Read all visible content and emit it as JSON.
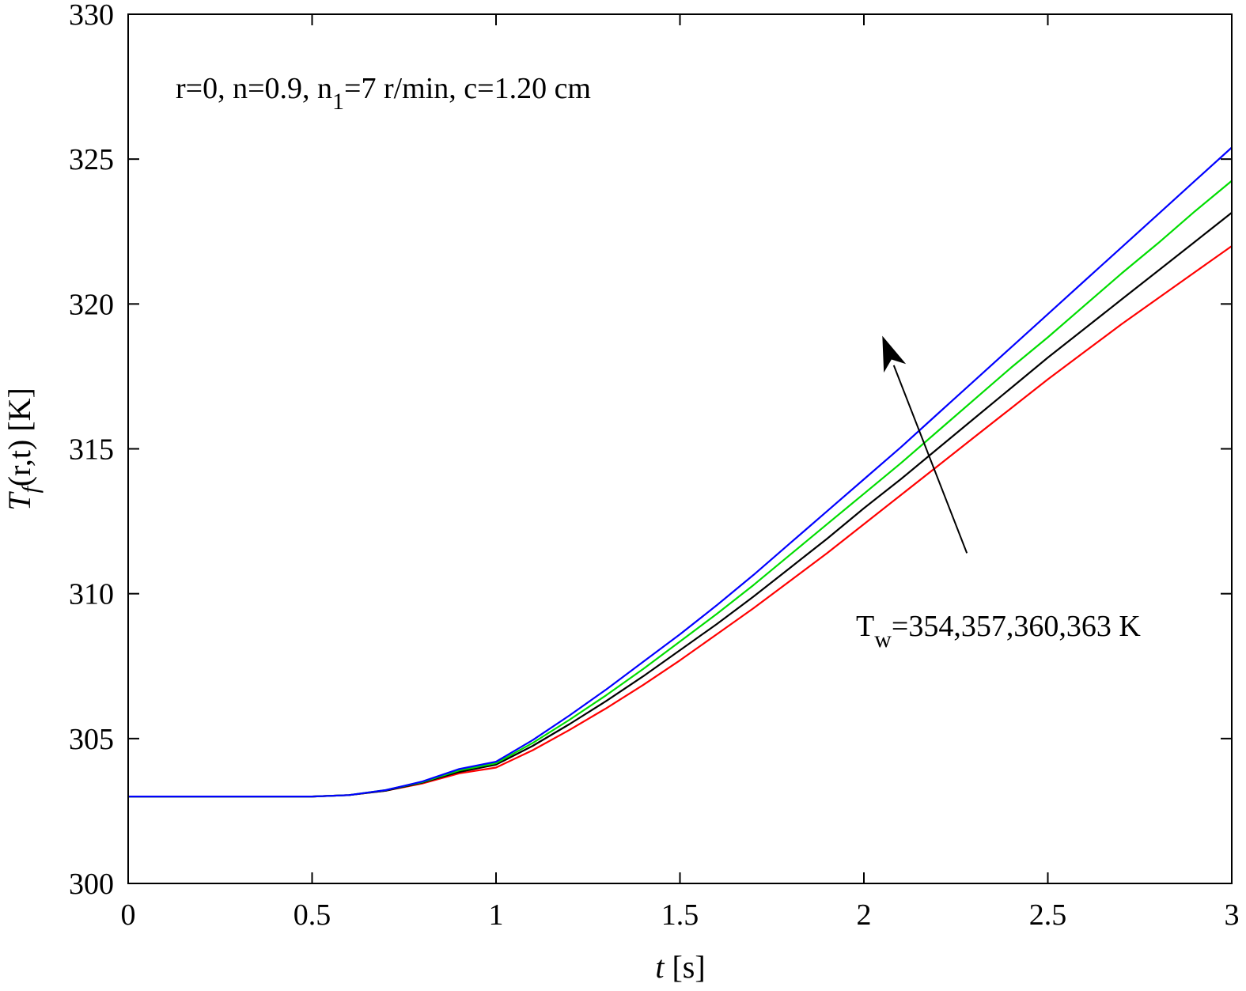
{
  "chart_data": {
    "type": "line",
    "xlabel": {
      "var": "t",
      "unit": "[s]"
    },
    "ylabel": {
      "var": "T",
      "sub": "f",
      "rest": "(r,t) [K]"
    },
    "xlim": [
      0,
      3
    ],
    "ylim": [
      300,
      330
    ],
    "xticks": [
      0,
      0.5,
      1,
      1.5,
      2,
      2.5,
      3
    ],
    "xtick_labels": [
      "0",
      "0.5",
      "1",
      "1.5",
      "2",
      "2.5",
      "3"
    ],
    "yticks": [
      300,
      305,
      310,
      315,
      320,
      325,
      330
    ],
    "ytick_labels": [
      "300",
      "305",
      "310",
      "315",
      "320",
      "325",
      "330"
    ],
    "grid": false,
    "annotations": {
      "params": {
        "part1": "r=0, n=0.9, n",
        "sub": "1",
        "part2": "=7 r/min, c=1.20 cm"
      },
      "tw": {
        "main": "T",
        "sub": "w",
        "rest": "=354,357,360,363 K"
      },
      "arrow": {
        "from": [
          2.28,
          311.4
        ],
        "to": [
          2.05,
          318.9
        ]
      }
    },
    "x": [
      0,
      0.5,
      0.6,
      0.7,
      0.8,
      0.9,
      1.0,
      1.1,
      1.2,
      1.3,
      1.4,
      1.5,
      1.6,
      1.7,
      1.8,
      1.9,
      2.0,
      2.1,
      2.2,
      2.3,
      2.4,
      2.5,
      2.6,
      2.7,
      2.8,
      2.9,
      3.0
    ],
    "series": [
      {
        "color": "#ff0000",
        "values": [
          303.0,
          303.0,
          303.05,
          303.2,
          303.45,
          303.8,
          304.0,
          304.6,
          305.3,
          306.05,
          306.85,
          307.7,
          308.6,
          309.5,
          310.45,
          311.4,
          312.4,
          313.4,
          314.4,
          315.4,
          316.4,
          317.4,
          318.35,
          319.3,
          320.2,
          321.1,
          322.0
        ]
      },
      {
        "color": "#000000",
        "values": [
          303.0,
          303.0,
          303.05,
          303.2,
          303.48,
          303.85,
          304.1,
          304.75,
          305.5,
          306.3,
          307.15,
          308.05,
          308.95,
          309.9,
          310.9,
          311.9,
          312.95,
          313.95,
          315.0,
          316.05,
          317.1,
          318.15,
          319.15,
          320.15,
          321.15,
          322.15,
          323.15
        ]
      },
      {
        "color": "#00dd00",
        "values": [
          303.0,
          303.0,
          303.05,
          303.22,
          303.5,
          303.9,
          304.15,
          304.85,
          305.65,
          306.5,
          307.4,
          308.35,
          309.3,
          310.3,
          311.35,
          312.4,
          313.45,
          314.5,
          315.6,
          316.7,
          317.8,
          318.85,
          319.95,
          321.05,
          322.1,
          323.2,
          324.25
        ]
      },
      {
        "color": "#0000ff",
        "values": [
          303.0,
          303.0,
          303.05,
          303.22,
          303.52,
          303.95,
          304.2,
          304.95,
          305.8,
          306.7,
          307.65,
          308.6,
          309.6,
          310.65,
          311.75,
          312.85,
          313.95,
          315.05,
          316.2,
          317.35,
          318.5,
          319.65,
          320.8,
          321.95,
          323.1,
          324.25,
          325.4
        ]
      }
    ]
  }
}
